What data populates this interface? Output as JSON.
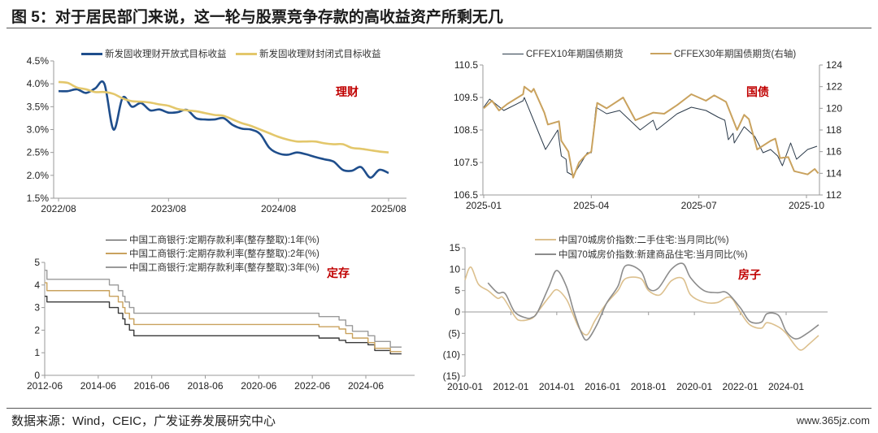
{
  "title": "图 5：对于居民部门来说，这一轮与股票竞争存款的高收益资产所剩无几",
  "source": "数据来源：Wind，CEIC，广发证券发展研究中心",
  "watermark": "www.365jz.com",
  "chart_data": [
    {
      "type": "line",
      "tag": "理财",
      "y_format": "percent",
      "ylim": [
        1.5,
        4.5
      ],
      "yticks": [
        "1.5%",
        "2.0%",
        "2.5%",
        "3.0%",
        "3.5%",
        "4.0%",
        "4.5%"
      ],
      "ytick_values": [
        1.5,
        2.0,
        2.5,
        3.0,
        3.5,
        4.0,
        4.5
      ],
      "xticks": [
        "2022/08",
        "2023/08",
        "2024/08",
        "2025/08"
      ],
      "xtick_dates": [
        "2022-08",
        "2023-08",
        "2024-08",
        "2025-08"
      ],
      "legend_placement": "top",
      "series": [
        {
          "name": "新发固收理财开放式目标收益",
          "color": "#1f4e8c",
          "x": [
            "2022-08",
            "2022-09",
            "2022-10",
            "2022-11",
            "2022-12",
            "2023-01",
            "2023-02",
            "2023-03",
            "2023-04",
            "2023-05",
            "2023-06",
            "2023-07",
            "2023-08",
            "2023-09",
            "2023-10",
            "2023-11",
            "2023-12",
            "2024-01",
            "2024-02",
            "2024-03",
            "2024-04",
            "2024-05",
            "2024-06",
            "2024-07",
            "2024-08",
            "2024-09",
            "2024-10",
            "2024-11",
            "2024-12",
            "2025-01",
            "2025-02",
            "2025-03",
            "2025-04",
            "2025-05",
            "2025-06",
            "2025-07",
            "2025-08"
          ],
          "y": [
            3.84,
            3.84,
            3.88,
            3.8,
            3.9,
            4.0,
            3.0,
            3.7,
            3.5,
            3.58,
            3.42,
            3.44,
            3.37,
            3.38,
            3.43,
            3.25,
            3.22,
            3.22,
            3.25,
            3.1,
            3.02,
            3.0,
            2.9,
            2.6,
            2.48,
            2.45,
            2.5,
            2.46,
            2.4,
            2.35,
            2.3,
            2.12,
            2.1,
            2.18,
            1.95,
            2.12,
            2.05
          ]
        },
        {
          "name": "新发固收理财封闭式目标收益",
          "color": "#e3c76b",
          "x": [
            "2022-08",
            "2022-09",
            "2022-10",
            "2022-11",
            "2022-12",
            "2023-01",
            "2023-02",
            "2023-03",
            "2023-04",
            "2023-05",
            "2023-06",
            "2023-07",
            "2023-08",
            "2023-09",
            "2023-10",
            "2023-11",
            "2023-12",
            "2024-01",
            "2024-02",
            "2024-03",
            "2024-04",
            "2024-05",
            "2024-06",
            "2024-07",
            "2024-08",
            "2024-09",
            "2024-10",
            "2024-11",
            "2024-12",
            "2025-01",
            "2025-02",
            "2025-03",
            "2025-04",
            "2025-05",
            "2025-06",
            "2025-07",
            "2025-08"
          ],
          "y": [
            4.04,
            4.02,
            3.92,
            3.88,
            3.82,
            3.82,
            3.78,
            3.68,
            3.62,
            3.61,
            3.59,
            3.55,
            3.52,
            3.45,
            3.42,
            3.4,
            3.36,
            3.32,
            3.3,
            3.22,
            3.14,
            3.08,
            3.0,
            2.92,
            2.84,
            2.78,
            2.74,
            2.74,
            2.74,
            2.7,
            2.68,
            2.68,
            2.6,
            2.58,
            2.55,
            2.52,
            2.5
          ]
        }
      ]
    },
    {
      "type": "line",
      "tag": "国债",
      "ylim": [
        106.5,
        110.5
      ],
      "yticks": [
        "106.5",
        "107.5",
        "108.5",
        "109.5",
        "110.5"
      ],
      "ytick_values": [
        106.5,
        107.5,
        108.5,
        109.5,
        110.5
      ],
      "y2lim": [
        112,
        124
      ],
      "y2ticks": [
        "112",
        "114",
        "116",
        "118",
        "120",
        "122",
        "124"
      ],
      "y2tick_values": [
        112,
        114,
        116,
        118,
        120,
        122,
        124
      ],
      "xticks": [
        "2025-01",
        "2025-04",
        "2025-07",
        "2025-10"
      ],
      "xtick_dates": [
        "2025-01-01",
        "2025-04-01",
        "2025-07-01",
        "2025-10-01"
      ],
      "legend_placement": "top",
      "series": [
        {
          "name": "CFFEX10年期国债期货",
          "color": "#2b3a4a",
          "axis": "left",
          "x": [
            "2025-01-01",
            "2025-01-06",
            "2025-01-18",
            "2025-02-04",
            "2025-02-05",
            "2025-02-14",
            "2025-02-23",
            "2025-03-03",
            "2025-03-06",
            "2025-03-10",
            "2025-03-11",
            "2025-03-16",
            "2025-03-23",
            "2025-03-28",
            "2025-04-01",
            "2025-04-05",
            "2025-04-14",
            "2025-04-25",
            "2025-05-12",
            "2025-05-23",
            "2025-05-26",
            "2025-06-13",
            "2025-06-25",
            "2025-07-07",
            "2025-07-17",
            "2025-07-23",
            "2025-07-26",
            "2025-07-30",
            "2025-07-31",
            "2025-08-09",
            "2025-08-18",
            "2025-08-25",
            "2025-09-01",
            "2025-09-07",
            "2025-09-11",
            "2025-09-18",
            "2025-09-23",
            "2025-10-02",
            "2025-10-10"
          ],
          "y": [
            109.2,
            109.45,
            109.1,
            109.4,
            109.5,
            108.7,
            107.9,
            108.5,
            107.7,
            107.6,
            107.2,
            107.1,
            107.5,
            107.8,
            107.8,
            109.2,
            109.0,
            109.1,
            108.5,
            108.8,
            108.5,
            109.0,
            109.2,
            109.1,
            108.9,
            108.8,
            108.2,
            108.4,
            108.1,
            108.6,
            108.3,
            107.8,
            107.9,
            107.7,
            107.4,
            108.1,
            107.6,
            107.9,
            108.0
          ]
        },
        {
          "name": "CFFEX30年期国债期货(右轴)",
          "color": "#c9a25e",
          "axis": "right",
          "x": [
            "2025-01-01",
            "2025-01-08",
            "2025-01-14",
            "2025-01-21",
            "2025-02-04",
            "2025-02-05",
            "2025-02-11",
            "2025-02-13",
            "2025-02-22",
            "2025-02-25",
            "2025-03-04",
            "2025-03-06",
            "2025-03-12",
            "2025-03-16",
            "2025-03-21",
            "2025-03-27",
            "2025-04-01",
            "2025-04-06",
            "2025-04-14",
            "2025-04-28",
            "2025-05-08",
            "2025-05-23",
            "2025-06-02",
            "2025-06-13",
            "2025-06-25",
            "2025-07-07",
            "2025-07-14",
            "2025-07-24",
            "2025-08-03",
            "2025-08-09",
            "2025-08-13",
            "2025-08-20",
            "2025-09-01",
            "2025-09-05",
            "2025-09-09",
            "2025-09-16",
            "2025-09-21",
            "2025-10-02",
            "2025-10-08",
            "2025-10-11"
          ],
          "y": [
            120,
            120.7,
            119.8,
            120.4,
            121.3,
            122,
            121.5,
            121.8,
            119.6,
            118.5,
            118.8,
            117,
            116,
            113.6,
            115,
            115.7,
            116,
            120.5,
            120,
            121,
            118.9,
            119.6,
            119.5,
            120.3,
            121.3,
            120.7,
            121.2,
            120.6,
            118,
            119.4,
            119,
            116.2,
            117,
            117.2,
            115.4,
            115.5,
            114.2,
            113.9,
            114.4,
            114
          ]
        }
      ]
    },
    {
      "type": "line",
      "tag": "定存",
      "step": true,
      "ylim": [
        0,
        5
      ],
      "yticks": [
        "0",
        "1",
        "2",
        "3",
        "4",
        "5"
      ],
      "ytick_values": [
        0,
        1,
        2,
        3,
        4,
        5
      ],
      "xticks": [
        "2012-06",
        "2014-06",
        "2016-06",
        "2018-06",
        "2020-06",
        "2022-06",
        "2024-06"
      ],
      "xtick_dates": [
        "2012-06",
        "2014-06",
        "2016-06",
        "2018-06",
        "2020-06",
        "2022-06",
        "2024-06"
      ],
      "legend_placement": "top",
      "series": [
        {
          "name": "中国工商银行:定期存款利率(整存整取):1年(%)",
          "color": "#3a3a3a",
          "x": [
            "2012-06",
            "2012-07",
            "2014-11",
            "2015-03",
            "2015-05",
            "2015-06",
            "2015-08",
            "2015-10",
            "2022-09",
            "2023-06",
            "2023-09",
            "2024-07",
            "2024-10",
            "2025-05",
            "2025-10"
          ],
          "y": [
            3.5,
            3.25,
            3.0,
            2.75,
            2.5,
            2.25,
            2.0,
            1.75,
            1.65,
            1.55,
            1.45,
            1.35,
            1.1,
            0.95,
            0.95
          ]
        },
        {
          "name": "中国工商银行:定期存款利率(整存整取):2年(%)",
          "color": "#c9a25e",
          "x": [
            "2012-06",
            "2012-07",
            "2014-11",
            "2015-03",
            "2015-05",
            "2015-06",
            "2015-08",
            "2015-10",
            "2022-09",
            "2023-06",
            "2023-09",
            "2023-12",
            "2024-07",
            "2024-10",
            "2025-05",
            "2025-10"
          ],
          "y": [
            4.1,
            3.75,
            3.5,
            3.25,
            3.0,
            2.75,
            2.5,
            2.25,
            2.15,
            2.05,
            1.85,
            1.65,
            1.45,
            1.2,
            1.05,
            1.05
          ]
        },
        {
          "name": "中国工商银行:定期存款利率(整存整取):3年(%)",
          "color": "#9a9a9a",
          "x": [
            "2012-06",
            "2012-07",
            "2014-11",
            "2015-03",
            "2015-05",
            "2015-06",
            "2015-08",
            "2015-10",
            "2022-09",
            "2023-06",
            "2023-09",
            "2023-12",
            "2024-07",
            "2024-10",
            "2025-05",
            "2025-10"
          ],
          "y": [
            4.65,
            4.25,
            4.0,
            3.75,
            3.5,
            3.25,
            3.0,
            2.75,
            2.6,
            2.45,
            2.2,
            1.95,
            1.75,
            1.5,
            1.25,
            1.25
          ]
        }
      ]
    },
    {
      "type": "line",
      "tag": "房子",
      "ylim": [
        -15,
        15
      ],
      "yticks": [
        "(15)",
        "(10)",
        "(5)",
        "0",
        "5",
        "10",
        "15"
      ],
      "ytick_values": [
        -15,
        -10,
        -5,
        0,
        5,
        10,
        15
      ],
      "negative_tick_color": "#c00000",
      "xticks": [
        "2010-01",
        "2012-01",
        "2014-01",
        "2016-01",
        "2018-01",
        "2020-01",
        "2022-01",
        "2024-01"
      ],
      "xtick_dates": [
        "2010-01",
        "2012-01",
        "2014-01",
        "2016-01",
        "2018-01",
        "2020-01",
        "2022-01",
        "2024-01"
      ],
      "legend_placement": "top",
      "series": [
        {
          "name": "中国70城房价指数:二手住宅:当月同比(%)",
          "color": "#dcc08e",
          "x": [
            "2010-01",
            "2010-04",
            "2010-08",
            "2011-01",
            "2011-06",
            "2011-09",
            "2012-03",
            "2012-06",
            "2012-12",
            "2013-03",
            "2013-09",
            "2014-01",
            "2014-06",
            "2014-09",
            "2015-01",
            "2015-05",
            "2015-09",
            "2016-03",
            "2016-09",
            "2017-01",
            "2017-09",
            "2018-01",
            "2018-07",
            "2019-01",
            "2019-07",
            "2019-11",
            "2020-06",
            "2021-01",
            "2021-06",
            "2021-09",
            "2022-01",
            "2022-06",
            "2022-12",
            "2023-03",
            "2023-09",
            "2024-01",
            "2024-06",
            "2024-09",
            "2025-01",
            "2025-06"
          ],
          "y": [
            7.5,
            10.5,
            6.5,
            5,
            3.2,
            3.3,
            -1,
            -2,
            -1.5,
            0,
            3.5,
            5.2,
            3,
            0,
            -4,
            -5.3,
            -2,
            2,
            5,
            7.8,
            7.8,
            5,
            4,
            7.3,
            7.8,
            4,
            2.3,
            2.2,
            3.4,
            3,
            0,
            -3,
            -3.8,
            -2.5,
            -3.5,
            -5,
            -8,
            -8.9,
            -7.5,
            -5.5
          ]
        },
        {
          "name": "中国70城房价指数:新建商品住宅:当月同比(%)",
          "color": "#8c8c8c",
          "x": [
            "2011-01",
            "2011-06",
            "2011-10",
            "2012-03",
            "2012-09",
            "2012-12",
            "2013-03",
            "2013-09",
            "2014-01",
            "2014-06",
            "2014-10",
            "2015-02",
            "2015-05",
            "2015-10",
            "2016-03",
            "2016-09",
            "2017-01",
            "2017-09",
            "2018-01",
            "2018-06",
            "2019-01",
            "2019-07",
            "2019-11",
            "2020-06",
            "2021-01",
            "2021-06",
            "2022-01",
            "2022-06",
            "2022-12",
            "2023-03",
            "2023-09",
            "2024-01",
            "2024-06",
            "2024-12",
            "2025-06"
          ],
          "y": [
            6.8,
            4.5,
            4.3,
            0,
            -1.4,
            -1.3,
            0,
            6,
            9.7,
            6,
            0,
            -5,
            -6.5,
            -3,
            2,
            6,
            10.8,
            9.5,
            5.5,
            5.5,
            10,
            11.3,
            8,
            5,
            4.5,
            4.5,
            1,
            -2.2,
            -2.4,
            -0.4,
            -0.8,
            -4.5,
            -6.3,
            -5,
            -3
          ]
        }
      ]
    }
  ]
}
